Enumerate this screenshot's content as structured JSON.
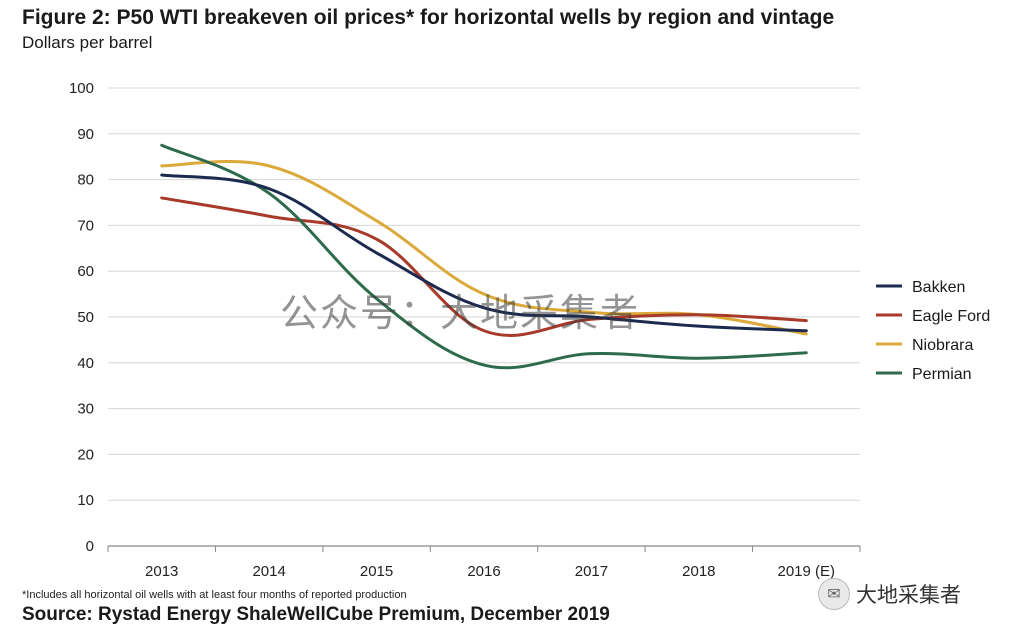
{
  "title": "Figure 2: P50 WTI breakeven oil prices* for horizontal wells by region and vintage",
  "subtitle": "Dollars per barrel",
  "footnote": "*Includes all horizontal oil wells with at least four months of reported production",
  "source": "Source: Rystad Energy ShaleWellCube Premium, December 2019",
  "watermark": "公众号：大地采集者",
  "badge": {
    "icon": "wechat-icon",
    "text": "大地采集者"
  },
  "chart_data": {
    "type": "line",
    "categories": [
      "2013",
      "2014",
      "2015",
      "2016",
      "2017",
      "2018",
      "2019 (E)"
    ],
    "ylim": [
      0,
      100
    ],
    "yticks": [
      0,
      10,
      20,
      30,
      40,
      50,
      60,
      70,
      80,
      90,
      100
    ],
    "grid": true,
    "legend_position": "right",
    "series": [
      {
        "name": "Bakken",
        "color": "#1b2a4e",
        "values": [
          81,
          78,
          64,
          52,
          50,
          48,
          47
        ]
      },
      {
        "name": "Eagle Ford",
        "color": "#a83a2a",
        "values": [
          76,
          72,
          67,
          47,
          49.5,
          50.5,
          49.2
        ]
      },
      {
        "name": "Niobrara",
        "color": "#dba93a",
        "values": [
          83,
          83,
          71,
          55,
          51,
          50.5,
          46.3
        ]
      },
      {
        "name": "Permian",
        "color": "#2e6b4c",
        "values": [
          87.5,
          77,
          54,
          39.5,
          42,
          41,
          42.2
        ]
      }
    ]
  }
}
